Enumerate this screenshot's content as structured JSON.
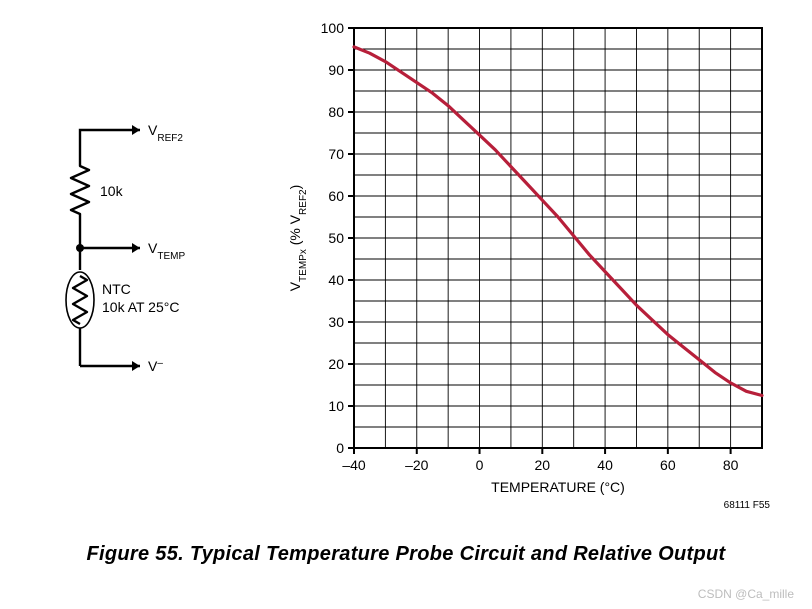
{
  "figure": {
    "caption": "Figure 55. Typical Temperature Probe Circuit and Relative Output",
    "label_code": "68111 F55",
    "watermark": "CSDN @Ca_mille"
  },
  "circuit": {
    "node_top_label": "V",
    "node_top_sub": "REF2",
    "resistor_label": "10k",
    "node_mid_label": "V",
    "node_mid_sub": "TEMP",
    "thermistor_line1": "NTC",
    "thermistor_line2": "10k AT 25°C",
    "node_bot_label": "V",
    "node_bot_super": "–",
    "stroke_color": "#000000",
    "stroke_width": 2.4,
    "thin_stroke_width": 1.6,
    "font_family": "Arial, Helvetica, sans-serif",
    "label_fontsize": 14,
    "sub_fontsize": 10
  },
  "chart": {
    "type": "line",
    "background_color": "#ffffff",
    "axis_color": "#000000",
    "grid_color": "#000000",
    "axis_width": 2,
    "grid_width": 0.9,
    "line_color": "#b71f3a",
    "line_width": 3.2,
    "xlim": [
      -40,
      90
    ],
    "ylim": [
      0,
      100
    ],
    "xtick_step": 20,
    "xtick_start": -40,
    "xgrid_step": 10,
    "ytick_step": 10,
    "ygrid_step": 5,
    "x_ticks": [
      "–40",
      "–20",
      "0",
      "20",
      "40",
      "60",
      "80"
    ],
    "y_ticks": [
      "0",
      "10",
      "20",
      "30",
      "40",
      "50",
      "60",
      "70",
      "80",
      "90",
      "100"
    ],
    "xlabel": "TEMPERATURE (°C)",
    "ylabel_prefix": "V",
    "ylabel_sub1": "TEMPx",
    "ylabel_mid": " (% V",
    "ylabel_sub2": "REF2",
    "ylabel_suffix": ")",
    "tick_fontsize": 14,
    "label_fontsize": 14,
    "sub_fontsize": 10,
    "data": [
      [
        -40,
        95.5
      ],
      [
        -35,
        94
      ],
      [
        -30,
        92
      ],
      [
        -25,
        89.5
      ],
      [
        -20,
        87
      ],
      [
        -15,
        84.5
      ],
      [
        -10,
        81.5
      ],
      [
        -5,
        78
      ],
      [
        0,
        74.5
      ],
      [
        5,
        71
      ],
      [
        10,
        67
      ],
      [
        15,
        63
      ],
      [
        20,
        59
      ],
      [
        25,
        55
      ],
      [
        30,
        50.5
      ],
      [
        35,
        46
      ],
      [
        40,
        42
      ],
      [
        45,
        38
      ],
      [
        50,
        34
      ],
      [
        55,
        30.5
      ],
      [
        60,
        27
      ],
      [
        65,
        24
      ],
      [
        70,
        21
      ],
      [
        75,
        18
      ],
      [
        80,
        15.5
      ],
      [
        85,
        13.5
      ],
      [
        90,
        12.5
      ]
    ]
  }
}
